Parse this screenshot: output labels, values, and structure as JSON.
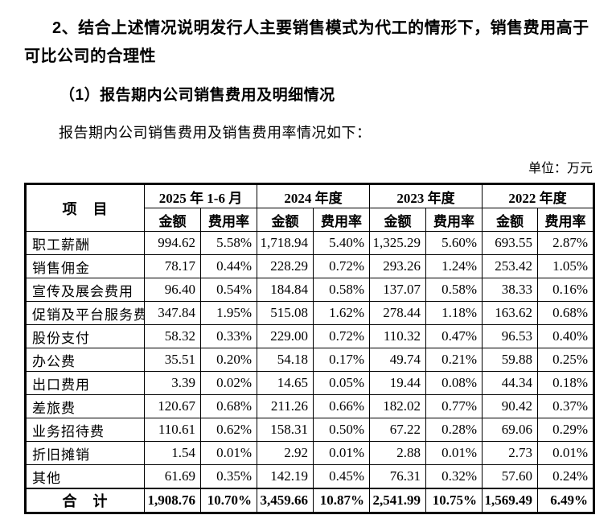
{
  "page": {
    "heading_line1": "2、结合上述情况说明发行人主要销售模式为代工的情形下，销售费用高于",
    "heading_line2": "可比公司的合理性",
    "subheading": "（1）报告期内公司销售费用及明细情况",
    "intro": "报告期内公司销售费用及销售费用率情况如下：",
    "unit_note": "单位：万元"
  },
  "table": {
    "item_header": "项　目",
    "periods": [
      "2025 年 1-6 月",
      "2024 年度",
      "2023 年度",
      "2022 年度"
    ],
    "sub_headers": {
      "amount": "金额",
      "rate": "费用率"
    },
    "rows": [
      {
        "label": "职工薪酬",
        "values": [
          "994.62",
          "5.58%",
          "1,718.94",
          "5.40%",
          "1,325.29",
          "5.60%",
          "693.55",
          "2.87%"
        ]
      },
      {
        "label": "销售佣金",
        "values": [
          "78.17",
          "0.44%",
          "228.29",
          "0.72%",
          "293.26",
          "1.24%",
          "253.42",
          "1.05%"
        ]
      },
      {
        "label": "宣传及展会费用",
        "values": [
          "96.40",
          "0.54%",
          "184.84",
          "0.58%",
          "137.07",
          "0.58%",
          "38.33",
          "0.16%"
        ]
      },
      {
        "label": "促销及平台服务费",
        "values": [
          "347.84",
          "1.95%",
          "515.08",
          "1.62%",
          "278.44",
          "1.18%",
          "163.62",
          "0.68%"
        ]
      },
      {
        "label": "股份支付",
        "values": [
          "58.32",
          "0.33%",
          "229.00",
          "0.72%",
          "110.32",
          "0.47%",
          "96.53",
          "0.40%"
        ]
      },
      {
        "label": "办公费",
        "values": [
          "35.51",
          "0.20%",
          "54.18",
          "0.17%",
          "49.74",
          "0.21%",
          "59.88",
          "0.25%"
        ]
      },
      {
        "label": "出口费用",
        "values": [
          "3.39",
          "0.02%",
          "14.65",
          "0.05%",
          "19.44",
          "0.08%",
          "44.34",
          "0.18%"
        ]
      },
      {
        "label": "差旅费",
        "values": [
          "120.67",
          "0.68%",
          "211.26",
          "0.66%",
          "182.02",
          "0.77%",
          "90.42",
          "0.37%"
        ]
      },
      {
        "label": "业务招待费",
        "values": [
          "110.61",
          "0.62%",
          "158.31",
          "0.50%",
          "67.22",
          "0.28%",
          "69.06",
          "0.29%"
        ]
      },
      {
        "label": "折旧摊销",
        "values": [
          "1.54",
          "0.01%",
          "2.92",
          "0.01%",
          "2.88",
          "0.01%",
          "2.73",
          "0.01%"
        ]
      },
      {
        "label": "其他",
        "values": [
          "61.69",
          "0.35%",
          "142.19",
          "0.45%",
          "76.31",
          "0.32%",
          "57.60",
          "0.24%"
        ]
      }
    ],
    "total_row": {
      "label": "合　计",
      "values": [
        "1,908.76",
        "10.70%",
        "3,459.66",
        "10.87%",
        "2,541.99",
        "10.75%",
        "1,569.49",
        "6.49%"
      ]
    }
  }
}
